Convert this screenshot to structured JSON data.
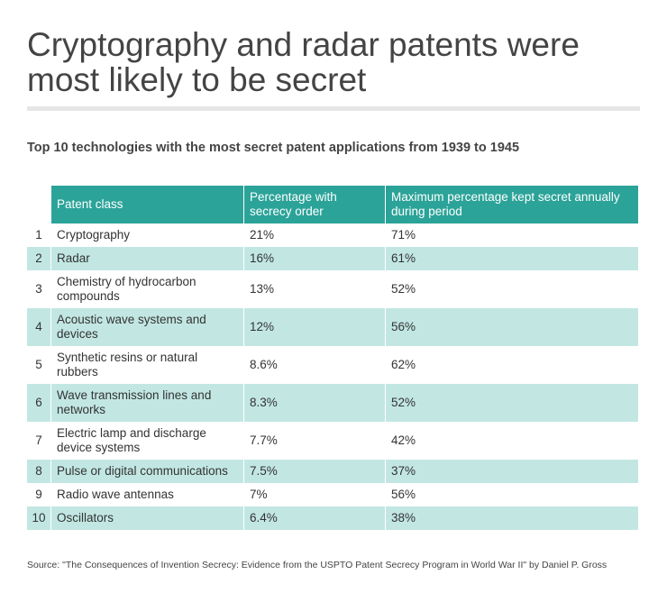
{
  "title": "Cryptography and radar patents were most likely to be secret",
  "subtitle": "Top 10 technologies with the most secret patent applications from 1939 to 1945",
  "source": "Source: \"The Consequences of Invention Secrecy: Evidence from the USPTO Patent Secrecy Program in World War II\" by Daniel P. Gross",
  "colors": {
    "header": "#2ba399",
    "shaded_row": "#c2e7e3",
    "text": "#333333"
  },
  "chart_data": {
    "type": "table",
    "columns": [
      "Patent class",
      "Percentage with secrecy order",
      "Maximum percentage kept secret annually during period"
    ],
    "rows": [
      {
        "rank": "1",
        "patent_class": "Cryptography",
        "pct_secrecy": "21%",
        "max_pct_secret": "71%"
      },
      {
        "rank": "2",
        "patent_class": "Radar",
        "pct_secrecy": "16%",
        "max_pct_secret": "61%"
      },
      {
        "rank": "3",
        "patent_class": "Chemistry of hydrocarbon compounds",
        "pct_secrecy": "13%",
        "max_pct_secret": "52%"
      },
      {
        "rank": "4",
        "patent_class": "Acoustic wave systems and devices",
        "pct_secrecy": "12%",
        "max_pct_secret": "56%"
      },
      {
        "rank": "5",
        "patent_class": "Synthetic resins or natural rubbers",
        "pct_secrecy": "8.6%",
        "max_pct_secret": "62%"
      },
      {
        "rank": "6",
        "patent_class": "Wave transmission lines and networks",
        "pct_secrecy": "8.3%",
        "max_pct_secret": "52%"
      },
      {
        "rank": "7",
        "patent_class": "Electric lamp and discharge device systems",
        "pct_secrecy": "7.7%",
        "max_pct_secret": "42%"
      },
      {
        "rank": "8",
        "patent_class": "Pulse or digital communications",
        "pct_secrecy": "7.5%",
        "max_pct_secret": "37%"
      },
      {
        "rank": "9",
        "patent_class": "Radio wave antennas",
        "pct_secrecy": "7%",
        "max_pct_secret": "56%"
      },
      {
        "rank": "10",
        "patent_class": "Oscillators",
        "pct_secrecy": "6.4%",
        "max_pct_secret": "38%"
      }
    ]
  }
}
